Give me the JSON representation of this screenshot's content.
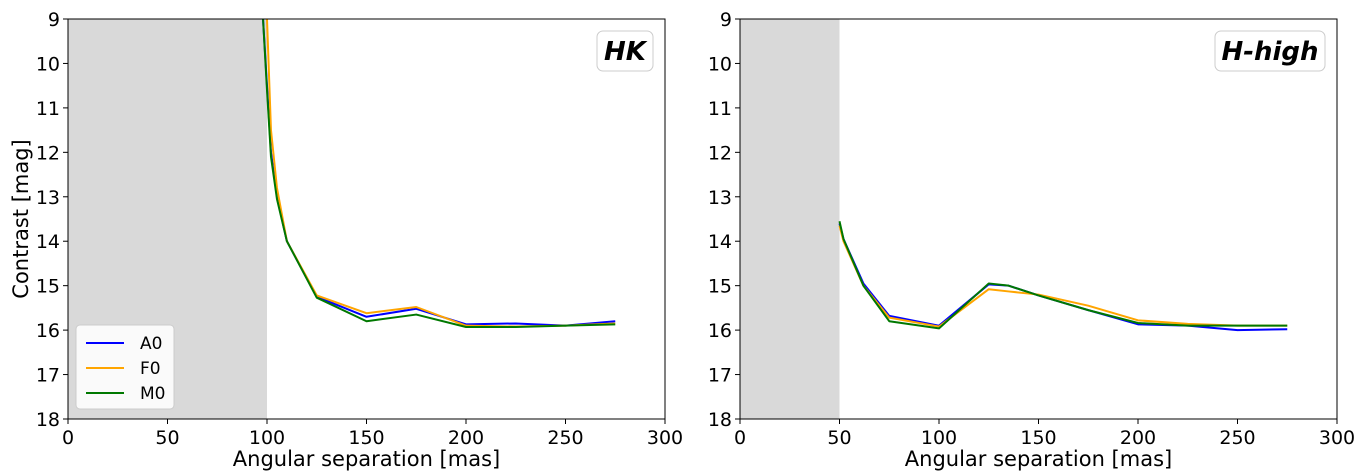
{
  "chart_data": [
    {
      "type": "line",
      "panel_label": "HK",
      "xlabel": "Angular separation [mas]",
      "ylabel": "Contrast [mag]",
      "xlim": [
        0,
        300
      ],
      "ylim": [
        18,
        9
      ],
      "y_inverted": true,
      "xticks": [
        0,
        50,
        100,
        150,
        200,
        250,
        300
      ],
      "yticks": [
        9,
        10,
        11,
        12,
        13,
        14,
        15,
        16,
        17,
        18
      ],
      "shaded_region": [
        0,
        100
      ],
      "shaded_color": "#d9d9d9",
      "grid": false,
      "legend_position": "lower-left",
      "series": [
        {
          "name": "A0",
          "color": "#0000ff",
          "x": [
            98,
            100,
            102,
            105,
            110,
            125,
            150,
            175,
            200,
            225,
            250,
            275
          ],
          "y": [
            9,
            10.5,
            12,
            13,
            14,
            15.25,
            15.7,
            15.52,
            15.87,
            15.85,
            15.9,
            15.8
          ]
        },
        {
          "name": "F0",
          "color": "#ffa500",
          "x": [
            100,
            102,
            105,
            110,
            125,
            150,
            175,
            200,
            225,
            250,
            275
          ],
          "y": [
            9,
            11.5,
            12.8,
            14,
            15.22,
            15.62,
            15.48,
            15.9,
            15.92,
            15.9,
            15.85
          ]
        },
        {
          "name": "M0",
          "color": "#007800",
          "x": [
            98,
            100,
            102,
            105,
            110,
            125,
            150,
            175,
            200,
            225,
            250,
            275
          ],
          "y": [
            9,
            10.6,
            12.1,
            13.05,
            14,
            15.27,
            15.8,
            15.65,
            15.93,
            15.93,
            15.9,
            15.87
          ]
        }
      ]
    },
    {
      "type": "line",
      "panel_label": "H-high",
      "xlabel": "Angular separation [mas]",
      "ylabel": "",
      "xlim": [
        0,
        300
      ],
      "ylim": [
        18,
        9
      ],
      "y_inverted": true,
      "xticks": [
        0,
        50,
        100,
        150,
        200,
        250,
        300
      ],
      "yticks": [
        9,
        10,
        11,
        12,
        13,
        14,
        15,
        16,
        17,
        18
      ],
      "shaded_region": [
        0,
        50
      ],
      "shaded_color": "#d9d9d9",
      "grid": false,
      "legend_position": "none",
      "series": [
        {
          "name": "A0",
          "color": "#0000ff",
          "x": [
            50,
            52,
            62,
            75,
            100,
            125,
            135,
            150,
            175,
            200,
            225,
            250,
            275
          ],
          "y": [
            13.6,
            13.95,
            14.95,
            15.68,
            15.9,
            14.97,
            15.0,
            15.22,
            15.55,
            15.87,
            15.9,
            16.0,
            15.98
          ]
        },
        {
          "name": "F0",
          "color": "#ffa500",
          "x": [
            50,
            52,
            62,
            75,
            100,
            125,
            135,
            150,
            175,
            200,
            225,
            250,
            275
          ],
          "y": [
            13.65,
            14.0,
            15.0,
            15.72,
            15.92,
            15.08,
            15.13,
            15.2,
            15.45,
            15.78,
            15.86,
            15.9,
            15.9
          ]
        },
        {
          "name": "M0",
          "color": "#007800",
          "x": [
            50,
            52,
            62,
            75,
            100,
            125,
            135,
            150,
            175,
            200,
            225,
            250,
            275
          ],
          "y": [
            13.55,
            13.95,
            15.0,
            15.8,
            15.96,
            14.95,
            15.0,
            15.22,
            15.55,
            15.84,
            15.9,
            15.9,
            15.9
          ]
        }
      ]
    }
  ]
}
